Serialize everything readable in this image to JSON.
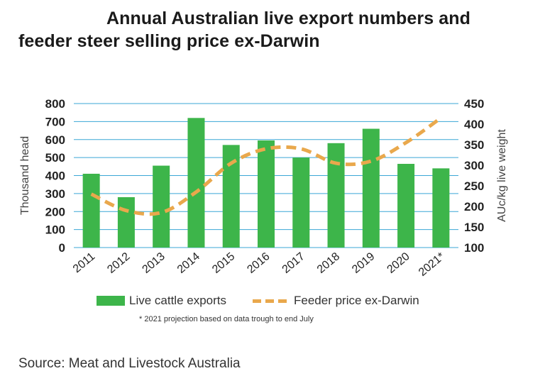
{
  "title_line1": "Annual Australian live export numbers and",
  "title_line2": "feeder steer selling price ex-Darwin",
  "source": "Source: Meat and Livestock Australia",
  "footnote": "* 2021 projection based on data trough to end July",
  "colors": {
    "bars": "#3db54a",
    "line": "#e9a84c",
    "grid": "#3aa7d6"
  },
  "chart_data": {
    "type": "bar",
    "categories": [
      "2011",
      "2012",
      "2013",
      "2014",
      "2015",
      "2016",
      "2017",
      "2018",
      "2019",
      "2020",
      "2021*"
    ],
    "series": [
      {
        "name": "Live cattle exports",
        "type": "bar",
        "axis": "left",
        "values": [
          410,
          280,
          455,
          720,
          570,
          595,
          500,
          580,
          660,
          465,
          440
        ]
      },
      {
        "name": "Feeder price ex-Darwin",
        "type": "line",
        "axis": "right",
        "values": [
          230,
          190,
          185,
          235,
          305,
          340,
          340,
          305,
          310,
          355,
          415
        ]
      }
    ],
    "ylabel": "Thousand head",
    "ylabel_right": "AUc/kg live weight",
    "ylim": [
      0,
      800
    ],
    "ylim_right": [
      100,
      450
    ],
    "yticks": [
      "0",
      "100",
      "200",
      "300",
      "400",
      "500",
      "600",
      "700",
      "800"
    ],
    "yticks_right": [
      "100",
      "150",
      "200",
      "250",
      "300",
      "350",
      "400",
      "450"
    ],
    "legend": "bottom"
  }
}
